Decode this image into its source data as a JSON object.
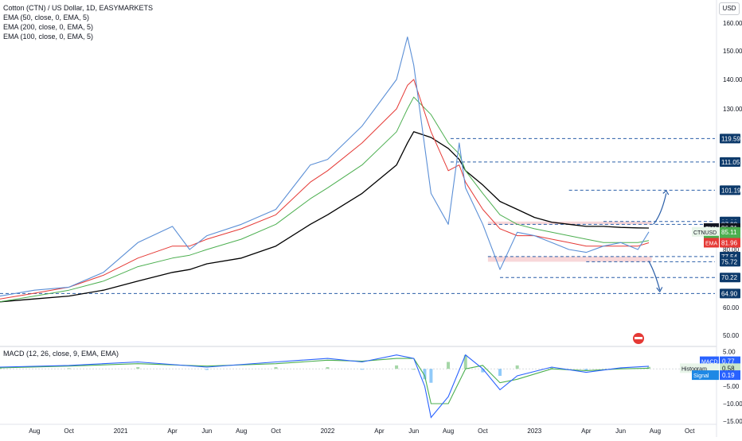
{
  "header": {
    "title": "Cotton (CTN) / US Dollar, 1D, EASYMARKETS",
    "indicators": [
      "EMA (50, close, 0, EMA, 5)",
      "EMA (200, close, 0, EMA, 5)",
      "EMA (100, close, 0, EMA, 5)"
    ],
    "currency": "USD"
  },
  "macd_panel": {
    "title": "MACD (12, 26, close, 9, EMA, EMA)"
  },
  "colors": {
    "price": "#5b8fd6",
    "ema50": "#e53935",
    "ema100": "#4caf50",
    "ema200": "#000000",
    "level_line": "#2a5ea8",
    "zone_fill": "#f6c9cc",
    "macd_line": "#2962ff",
    "signal_line": "#4caf50",
    "hist_pos": "#a5d6a7",
    "hist_neg": "#90caf9"
  },
  "chart_data": [
    {
      "type": "line",
      "title": "Cotton (CTN) / US Dollar, 1D, EASYMARKETS",
      "xlabel": "",
      "ylabel": "",
      "x_ticks": [
        "Aug",
        "Oct",
        "2021",
        "Apr",
        "Jun",
        "Aug",
        "Oct",
        "2022",
        "Apr",
        "Jun",
        "Aug",
        "Oct",
        "2023",
        "Apr",
        "Jun",
        "Aug",
        "Oct"
      ],
      "y_ticks": [
        160,
        150,
        140,
        130,
        80,
        70,
        60,
        50
      ],
      "ylim": [
        45,
        164
      ],
      "x": [
        "2020-06",
        "2020-08",
        "2020-10",
        "2020-12",
        "2021-02",
        "2021-04",
        "2021-05",
        "2021-06",
        "2021-08",
        "2021-10",
        "2021-12",
        "2022-01",
        "2022-03",
        "2022-05",
        "2022-05-20",
        "2022-06",
        "2022-07",
        "2022-08",
        "2022-08-20",
        "2022-09",
        "2022-10",
        "2022-11",
        "2022-12",
        "2023-01",
        "2023-02",
        "2023-03",
        "2023-04",
        "2023-05",
        "2023-06",
        "2023-07",
        "2023-07-20"
      ],
      "series": [
        {
          "name": "CTNUSD",
          "values": [
            64,
            66,
            67,
            72,
            82,
            87,
            80,
            84,
            88,
            94,
            110,
            112,
            124,
            140,
            155,
            145,
            100,
            88,
            118,
            102,
            88,
            73,
            85,
            84,
            82,
            80,
            79,
            81,
            82,
            80,
            85.11
          ]
        },
        {
          "name": "EMA 50",
          "values": [
            63,
            65,
            67,
            71,
            77,
            81,
            81,
            83,
            86,
            92,
            104,
            108,
            118,
            130,
            138,
            140,
            122,
            108,
            110,
            104,
            94,
            86,
            84,
            84,
            83,
            82,
            81,
            81,
            81,
            81,
            81.96
          ]
        },
        {
          "name": "EMA 100",
          "values": [
            62,
            64,
            66,
            69,
            74,
            77,
            78,
            80,
            83,
            88,
            98,
            102,
            110,
            122,
            130,
            134,
            128,
            118,
            114,
            108,
            100,
            92,
            88,
            86,
            85,
            84,
            83,
            82,
            82,
            82,
            82.58
          ]
        },
        {
          "name": "EMA 200",
          "values": [
            62,
            63,
            64,
            66,
            69,
            72,
            73,
            75,
            77,
            81,
            88,
            92,
            100,
            110,
            118,
            122,
            120,
            116,
            112,
            108,
            103,
            97,
            94,
            91,
            89,
            88,
            87,
            87,
            86.5,
            86.3,
            86.21
          ]
        }
      ],
      "price_labels": [
        {
          "text": "119.59",
          "kind": "level"
        },
        {
          "text": "111.05",
          "kind": "level"
        },
        {
          "text": "101.19",
          "kind": "level"
        },
        {
          "text": "89.32",
          "kind": "level"
        },
        {
          "text": "87.98",
          "kind": "level"
        },
        {
          "text": "86.21",
          "kind": "ema",
          "tag": "EMA"
        },
        {
          "text": "85.11",
          "kind": "price",
          "tag": "CTNUSD"
        },
        {
          "text": "82.58",
          "kind": "ema100",
          "tag": "EMA"
        },
        {
          "text": "81.96",
          "kind": "ema50",
          "tag": "EMA"
        },
        {
          "text": "77.54",
          "kind": "level"
        },
        {
          "text": "75.72",
          "kind": "level"
        },
        {
          "text": "70.22",
          "kind": "level"
        },
        {
          "text": "64.90",
          "kind": "level"
        }
      ],
      "levels": [
        119.59,
        111.05,
        101.19,
        89.32,
        87.98,
        77.54,
        75.72,
        70.22,
        64.9
      ],
      "zones": [
        [
          87.98,
          89.32
        ],
        [
          75.72,
          77.54
        ]
      ],
      "grid": false,
      "legend": "top-left"
    },
    {
      "type": "line",
      "title": "MACD (12, 26, close, 9, EMA, EMA)",
      "y_ticks": [
        "5.00",
        "0.00",
        "−5.00",
        "−10.00",
        "−15.00"
      ],
      "ylim": [
        -15.5,
        6
      ],
      "x": [
        "2020-06",
        "2020-10",
        "2021-02",
        "2021-06",
        "2021-10",
        "2022-01",
        "2022-03",
        "2022-05",
        "2022-06",
        "2022-06-20",
        "2022-07",
        "2022-08",
        "2022-09",
        "2022-10",
        "2022-11",
        "2022-12",
        "2023-02",
        "2023-04",
        "2023-06",
        "2023-07-20"
      ],
      "series": [
        {
          "name": "MACD",
          "values": [
            0.5,
            1,
            2,
            0.5,
            2,
            3,
            2,
            4,
            3,
            -5,
            -14,
            -8,
            4,
            0,
            -6,
            -2,
            0.5,
            -1,
            0.3,
            0.77
          ]
        },
        {
          "name": "Signal",
          "values": [
            0.3,
            0.8,
            1.5,
            0.8,
            1.5,
            2.5,
            2.2,
            3,
            3,
            -2,
            -10,
            -10,
            0,
            1,
            -4,
            -3,
            0,
            -0.5,
            0,
            0.19
          ]
        },
        {
          "name": "Histogram",
          "values": [
            0.2,
            0.2,
            0.5,
            -0.3,
            0.5,
            0.5,
            -0.2,
            1,
            0,
            -3,
            -4,
            2,
            4,
            -1,
            -2,
            1,
            0.5,
            -0.5,
            0.3,
            0.58
          ]
        }
      ],
      "value_labels": [
        {
          "tag": "MACD",
          "text": "0.77"
        },
        {
          "tag": "Histogram",
          "text": "0.58"
        },
        {
          "tag": "Signal",
          "text": "0.19"
        }
      ]
    }
  ]
}
